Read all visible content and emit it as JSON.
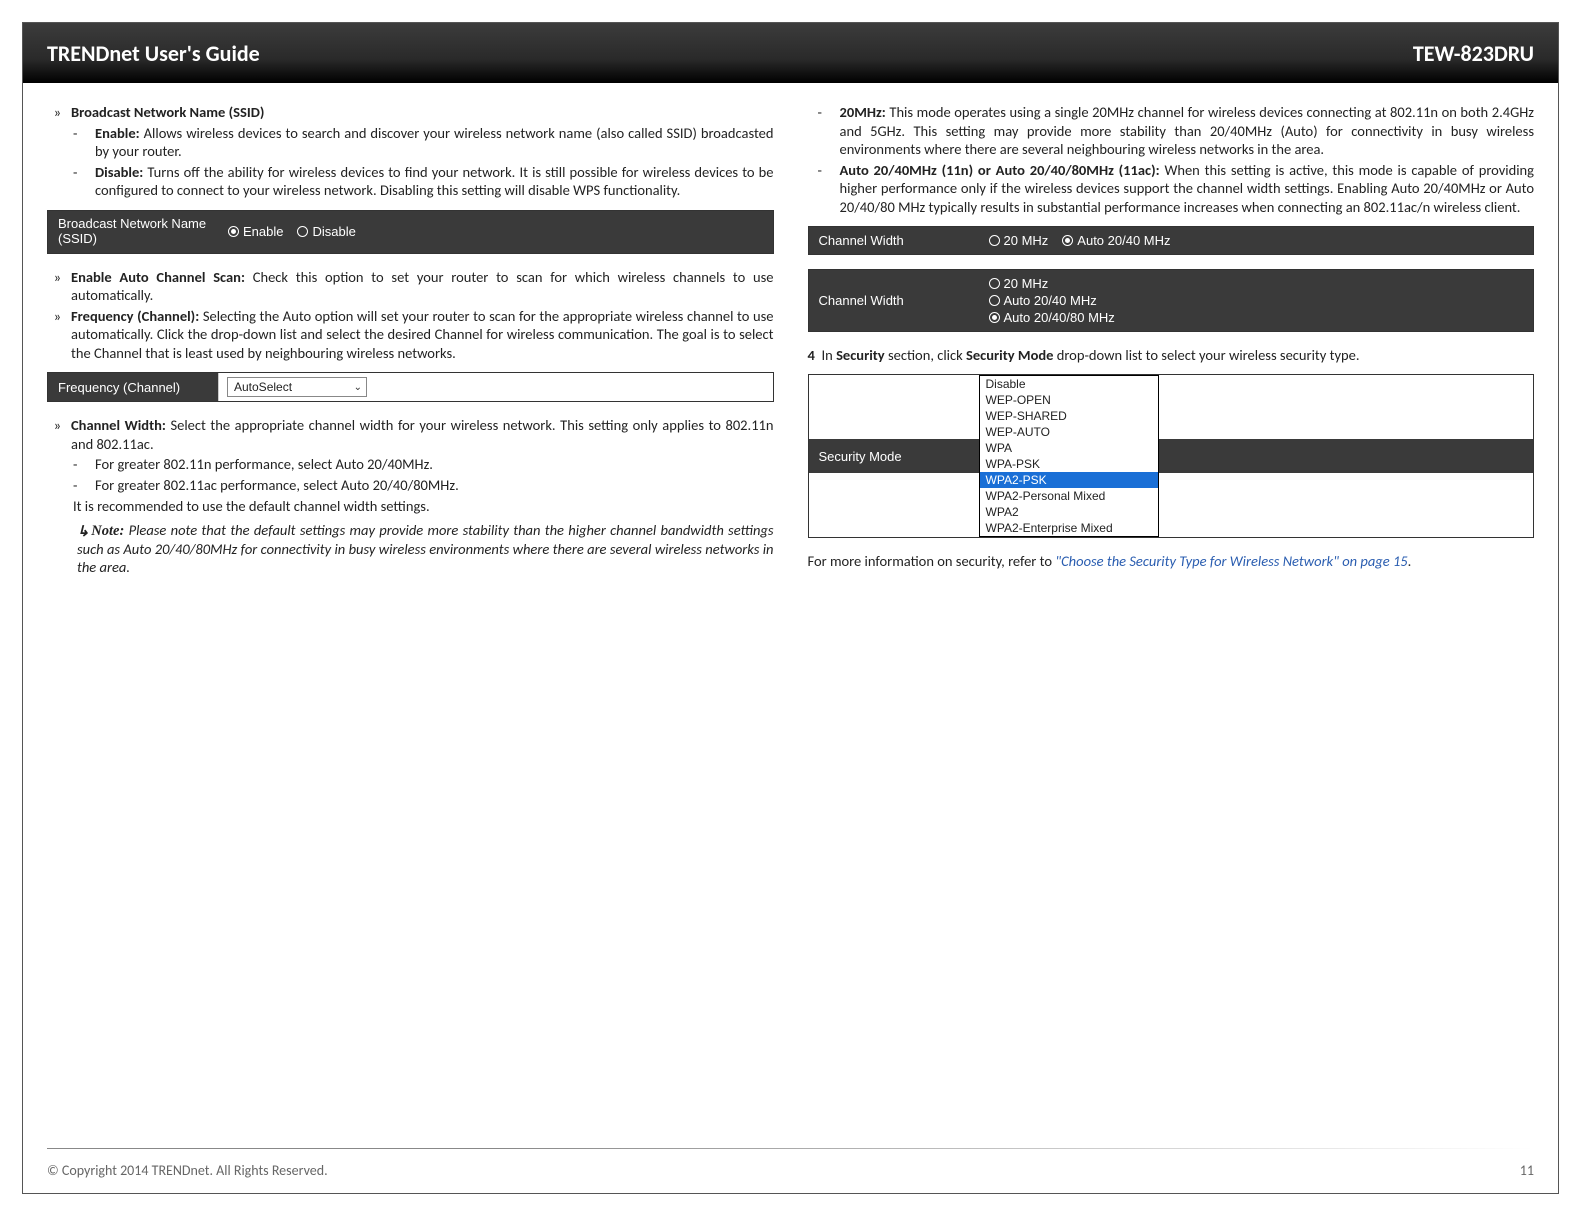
{
  "header": {
    "left": "TRENDnet User's Guide",
    "right": "TEW-823DRU"
  },
  "left_col": {
    "ssid_title": "Broadcast Network Name (SSID)",
    "ssid_enable_label": "Enable:",
    "ssid_enable_text": "Allows wireless devices to search and discover your wireless network name (also called SSID) broadcasted by your router.",
    "ssid_disable_label": "Disable:",
    "ssid_disable_text": "Turns off the ability for wireless devices to find your network. It is still possible for wireless devices to be configured to connect to your wireless network. Disabling this setting will disable WPS functionality.",
    "ss_ssid": {
      "label": "Broadcast Network Name (SSID)",
      "opt_enable": "Enable",
      "opt_disable": "Disable"
    },
    "auto_scan_title": "Enable Auto Channel Scan:",
    "auto_scan_text": "Check this option to set your router to scan for which wireless channels to use automatically.",
    "freq_title": "Frequency (Channel):",
    "freq_text": "Selecting the Auto option will set your router to scan for the appropriate wireless channel to use automatically. Click the drop-down list and select the desired Channel for wireless communication. The goal is to select the Channel that is least used by neighbouring wireless networks.",
    "ss_freq": {
      "label": "Frequency (Channel)",
      "value": "AutoSelect"
    },
    "cw_title": "Channel Width:",
    "cw_text": "Select the appropriate channel width for your wireless network. This setting only applies to 802.11n and 802.11ac.",
    "cw_n": "For greater 802.11n performance, select Auto 20/40MHz.",
    "cw_ac": "For greater 802.11ac performance, select Auto 20/40/80MHz.",
    "cw_rec": "It is recommended to use the default channel width settings.",
    "note_label": "Note:",
    "note_text": "Please note that the default settings may provide more stability than the higher channel bandwidth settings such as Auto 20/40/80MHz for connectivity in busy wireless environments where there are several wireless networks in the area."
  },
  "right_col": {
    "mhz20_label": "20MHz:",
    "mhz20_text": "This mode operates using a single 20MHz channel for wireless devices connecting at 802.11n on both 2.4GHz and 5GHz. This setting may provide more stability than 20/40MHz (Auto) for connectivity in busy wireless environments where there are several neighbouring wireless networks in the area.",
    "auto_label": "Auto 20/40MHz (11n) or Auto 20/40/80MHz (11ac):",
    "auto_text": "When this setting is active, this mode is capable of providing higher performance only if the wireless devices support the channel width settings. Enabling Auto 20/40MHz or Auto 20/40/80 MHz typically results in substantial performance increases when connecting an 802.11ac/n wireless client.",
    "ss_cw1": {
      "label": "Channel Width",
      "opt20": "20 MHz",
      "optAuto": "Auto 20/40 MHz"
    },
    "ss_cw2": {
      "label": "Channel Width",
      "opt20": "20 MHz",
      "opt2040": "Auto 20/40 MHz",
      "opt204080": "Auto 20/40/80 MHz"
    },
    "step4_a": "In ",
    "step4_b": "Security",
    "step4_c": " section, click ",
    "step4_d": "Security Mode",
    "step4_e": " drop-down list to select your wireless security type.",
    "ss_sec": {
      "label": "Security Mode",
      "options": [
        "Disable",
        "WEP-OPEN",
        "WEP-SHARED",
        "WEP-AUTO",
        "WPA",
        "WPA-PSK",
        "WPA2-PSK",
        "WPA2-Personal Mixed",
        "WPA2",
        "WPA2-Enterprise Mixed"
      ],
      "selected_index": 6
    },
    "more_a": "For more information on security, refer to ",
    "more_link": "\"Choose the Security Type for Wireless Network\" on page 15",
    "more_b": "."
  },
  "footer": {
    "copyright": "© Copyright 2014 TRENDnet. All Rights Reserved.",
    "page": "11"
  }
}
